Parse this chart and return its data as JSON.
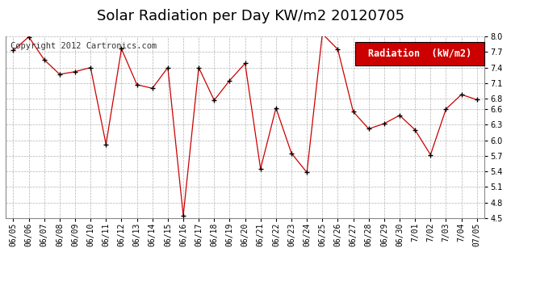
{
  "title": "Solar Radiation per Day KW/m2 20120705",
  "copyright_text": "Copyright 2012 Cartronics.com",
  "legend_label": "Radiation  (kW/m2)",
  "dates": [
    "06/05",
    "06/06",
    "06/07",
    "06/08",
    "06/09",
    "06/10",
    "06/11",
    "06/12",
    "06/13",
    "06/14",
    "06/15",
    "06/16",
    "06/17",
    "06/18",
    "06/19",
    "06/20",
    "06/21",
    "06/22",
    "06/23",
    "06/24",
    "06/25",
    "06/26",
    "06/27",
    "06/28",
    "06/29",
    "06/30",
    "7/01",
    "7/02",
    "7/03",
    "7/04",
    "07/05"
  ],
  "values": [
    7.73,
    7.99,
    7.55,
    7.27,
    7.32,
    7.4,
    5.92,
    7.76,
    7.07,
    7.0,
    7.4,
    4.55,
    7.4,
    6.77,
    7.15,
    7.48,
    5.45,
    6.62,
    5.75,
    5.38,
    8.05,
    7.75,
    6.55,
    6.22,
    6.32,
    6.48,
    6.2,
    5.72,
    6.6,
    6.88,
    6.78
  ],
  "ylim": [
    4.5,
    8.0
  ],
  "ytick_values": [
    4.5,
    4.8,
    5.1,
    5.4,
    5.7,
    6.0,
    6.3,
    6.6,
    6.8,
    7.1,
    7.4,
    7.7,
    8.0
  ],
  "ytick_labels": [
    "4.5",
    "4.8",
    "5.1",
    "5.4",
    "5.7",
    "6.0",
    "6.3",
    "6.6",
    "6.8",
    "7.1",
    "7.4",
    "7.7",
    "8.0"
  ],
  "line_color": "#cc0000",
  "marker_color": "#000000",
  "background_color": "#ffffff",
  "plot_bg_color": "#ffffff",
  "grid_color": "#aaaaaa",
  "legend_bg_color": "#cc0000",
  "legend_text_color": "#ffffff",
  "title_fontsize": 13,
  "copyright_fontsize": 7.5,
  "tick_fontsize": 7,
  "legend_fontsize": 8.5
}
